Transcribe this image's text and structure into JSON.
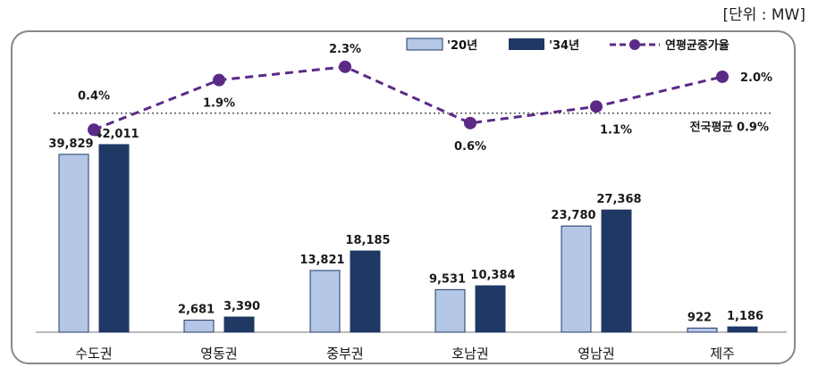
{
  "unit_label": "[단위 : MW]",
  "chart_data": {
    "type": "bar",
    "categories": [
      "수도권",
      "영동권",
      "중부권",
      "호남권",
      "영남권",
      "제주"
    ],
    "series": [
      {
        "name": "'20년",
        "values": [
          39829,
          2681,
          13821,
          9531,
          23780,
          922
        ],
        "labels": [
          "39,829",
          "2,681",
          "13,821",
          "9,531",
          "23,780",
          "922"
        ],
        "color": "#b4c7e7"
      },
      {
        "name": "'34년",
        "values": [
          42011,
          3390,
          18185,
          10384,
          27368,
          1186
        ],
        "labels": [
          "42,011",
          "3,390",
          "18,185",
          "10,384",
          "27,368",
          "1,186"
        ],
        "color": "#1f3864"
      }
    ],
    "line_series": {
      "name": "연평균증가율",
      "values": [
        0.4,
        1.9,
        2.3,
        0.6,
        1.1,
        2.0
      ],
      "labels": [
        "0.4%",
        "1.9%",
        "2.3%",
        "0.6%",
        "1.1%",
        "2.0%"
      ],
      "color": "#5b2a86"
    },
    "reference_line": {
      "label": "전국평균 0.9%",
      "value": 0.9
    },
    "ylim_bar": [
      0,
      50000
    ],
    "ylim_line": [
      -1.4,
      2.7
    ],
    "legend_position": "top-right"
  }
}
